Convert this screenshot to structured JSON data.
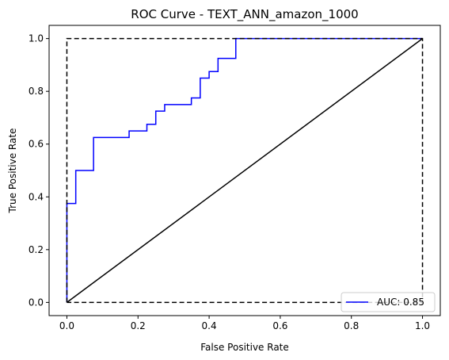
{
  "chart_data": {
    "type": "line",
    "title": "ROC Curve - TEXT_ANN_amazon_1000",
    "xlabel": "False Positive Rate",
    "ylabel": "True Positive Rate",
    "xlim": [
      -0.05,
      1.05
    ],
    "ylim": [
      -0.05,
      1.05
    ],
    "xticks": [
      "0.0",
      "0.2",
      "0.4",
      "0.6",
      "0.8",
      "1.0"
    ],
    "yticks": [
      "0.0",
      "0.2",
      "0.4",
      "0.6",
      "0.8",
      "1.0"
    ],
    "grid": false,
    "legend_position": "lower-right",
    "series": [
      {
        "name": "AUC: 0.85",
        "color": "#0000ff",
        "style": "step",
        "x": [
          0.0,
          0.0,
          0.025,
          0.025,
          0.075,
          0.075,
          0.175,
          0.175,
          0.225,
          0.225,
          0.25,
          0.25,
          0.275,
          0.275,
          0.35,
          0.35,
          0.375,
          0.375,
          0.4,
          0.4,
          0.425,
          0.425,
          0.475,
          0.475,
          1.0
        ],
        "y": [
          0.0,
          0.375,
          0.375,
          0.5,
          0.5,
          0.625,
          0.625,
          0.65,
          0.65,
          0.675,
          0.675,
          0.725,
          0.725,
          0.75,
          0.75,
          0.775,
          0.775,
          0.85,
          0.85,
          0.875,
          0.875,
          0.925,
          0.925,
          1.0,
          1.0
        ]
      },
      {
        "color": "#000000",
        "style": "solid",
        "x": [
          0,
          1
        ],
        "y": [
          0,
          1
        ]
      },
      {
        "color": "#000000",
        "style": "dashed",
        "x": [
          0,
          0,
          1,
          1,
          0
        ],
        "y": [
          0,
          1,
          1,
          0,
          0
        ]
      }
    ]
  }
}
